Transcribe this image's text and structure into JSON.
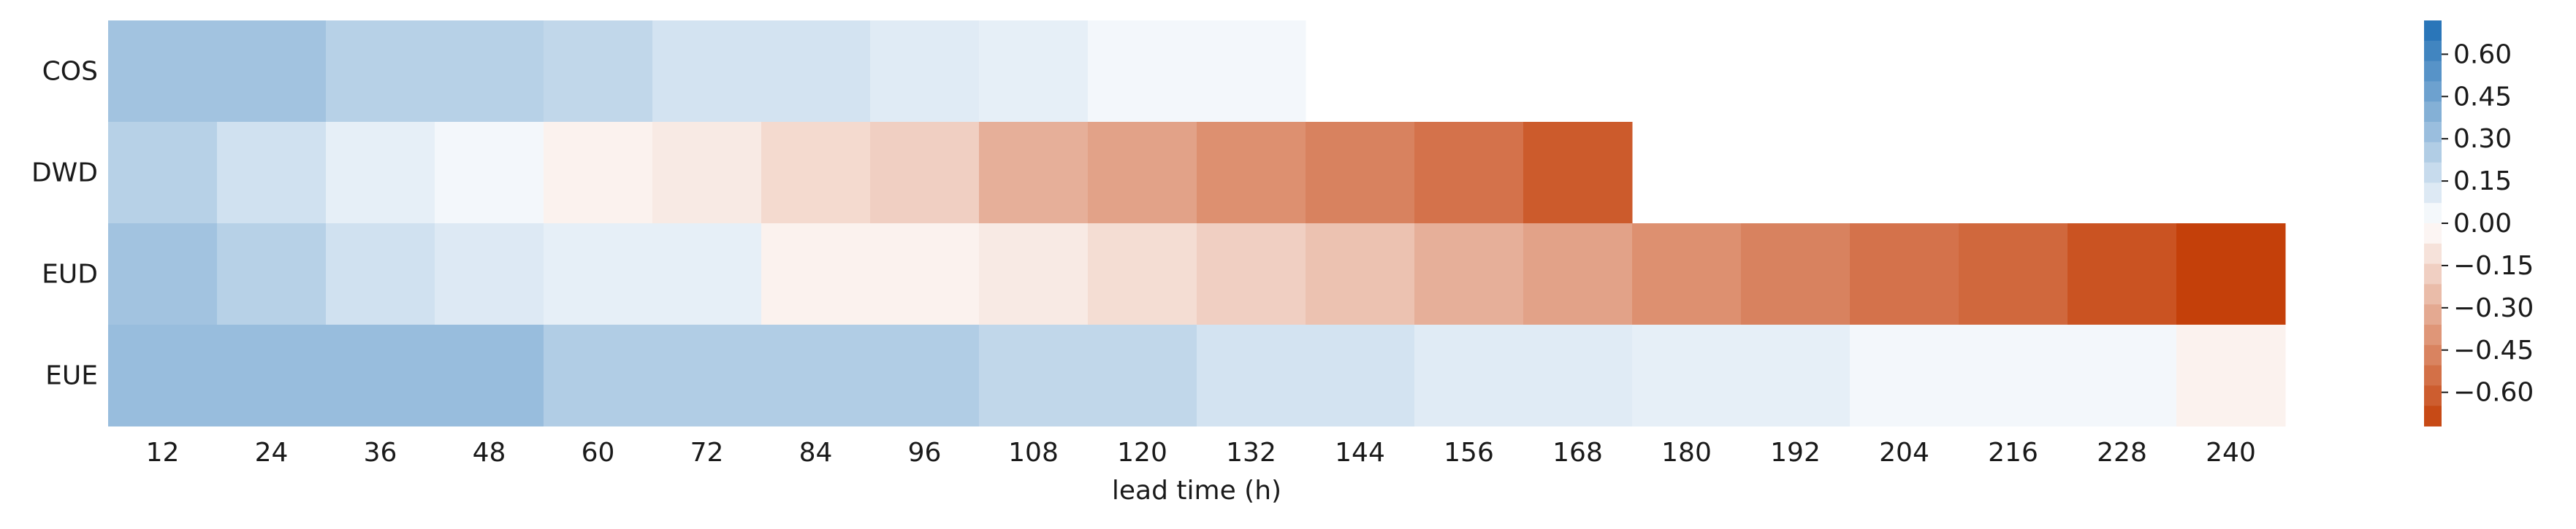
{
  "chart_data": {
    "type": "heatmap",
    "title": "",
    "xlabel": "lead time (h)",
    "ylabel": "",
    "x": [
      "12",
      "24",
      "36",
      "48",
      "60",
      "72",
      "84",
      "96",
      "108",
      "120",
      "132",
      "144",
      "156",
      "168",
      "180",
      "192",
      "204",
      "216",
      "228",
      "240"
    ],
    "y": [
      "COS",
      "DWD",
      "EUD",
      "EUE"
    ],
    "values": [
      [
        0.3,
        0.3,
        0.23,
        0.23,
        0.2,
        0.14,
        0.14,
        0.1,
        0.08,
        0.04,
        0.04,
        null,
        null,
        null,
        null,
        null,
        null,
        null,
        null,
        null
      ],
      [
        0.23,
        0.15,
        0.08,
        0.04,
        -0.05,
        -0.08,
        -0.14,
        -0.18,
        -0.3,
        -0.35,
        -0.42,
        -0.47,
        -0.53,
        -0.62,
        null,
        null,
        null,
        null,
        null,
        null
      ],
      [
        0.3,
        0.23,
        0.15,
        0.11,
        0.08,
        0.08,
        -0.05,
        -0.05,
        -0.08,
        -0.13,
        -0.18,
        -0.23,
        -0.3,
        -0.35,
        -0.42,
        -0.47,
        -0.53,
        -0.57,
        -0.65,
        -0.72
      ],
      [
        0.33,
        0.33,
        0.33,
        0.33,
        0.25,
        0.25,
        0.25,
        0.25,
        0.2,
        0.2,
        0.14,
        0.14,
        0.1,
        0.1,
        0.08,
        0.08,
        0.04,
        0.04,
        0.04,
        -0.05
      ]
    ],
    "colorbar": {
      "min": -0.72,
      "max": 0.72,
      "ticks": [
        "0.60",
        "0.45",
        "0.30",
        "0.15",
        "0.00",
        "−0.15",
        "−0.30",
        "−0.45",
        "−0.60"
      ],
      "tick_values": [
        0.6,
        0.45,
        0.3,
        0.15,
        0.0,
        -0.15,
        -0.3,
        -0.45,
        -0.6
      ],
      "positive_color": "#1f6fb5",
      "negative_color": "#c4400a",
      "zero_color": "#ffffff"
    },
    "grid": false,
    "legend": "colorbar-right"
  }
}
